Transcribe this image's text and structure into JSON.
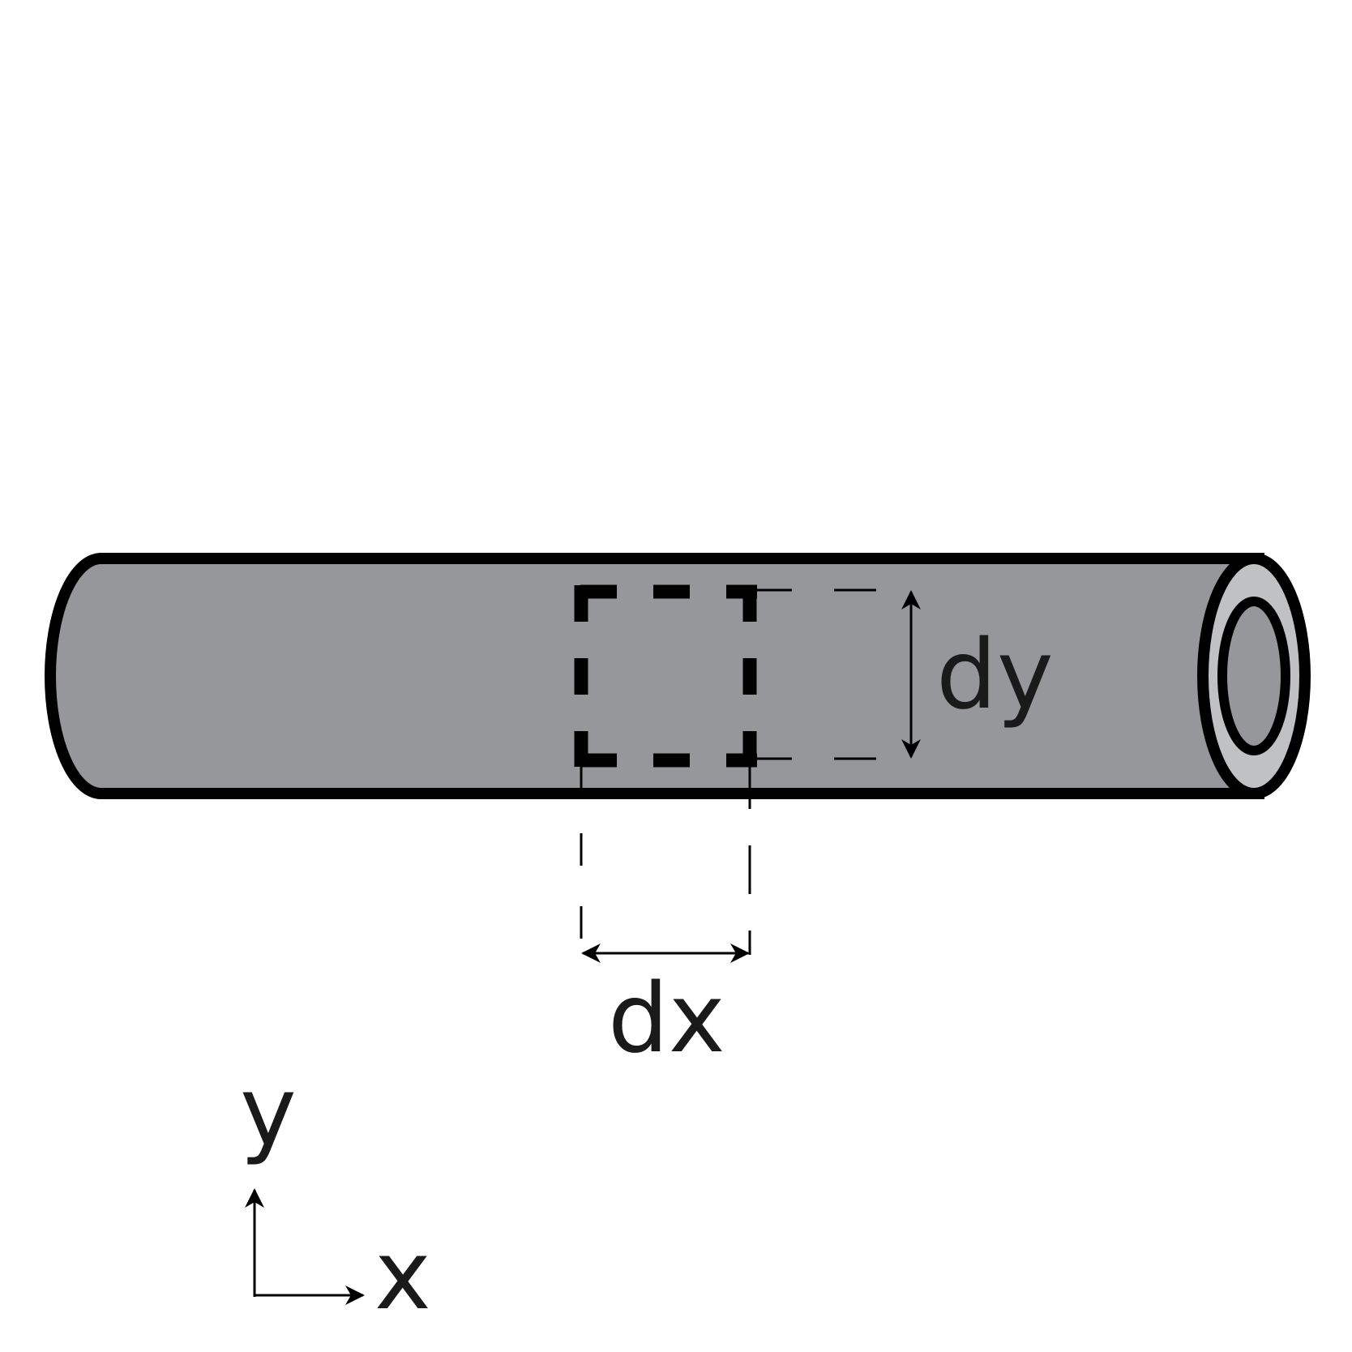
{
  "labels": {
    "dy": "dy",
    "dx": "dx",
    "axis_y": "y",
    "axis_x": "x"
  },
  "colors": {
    "tube_fill": "#96979a",
    "end_ring_fill": "#c0c1c3",
    "stroke": "#000000",
    "text": "#1a1a1a"
  }
}
